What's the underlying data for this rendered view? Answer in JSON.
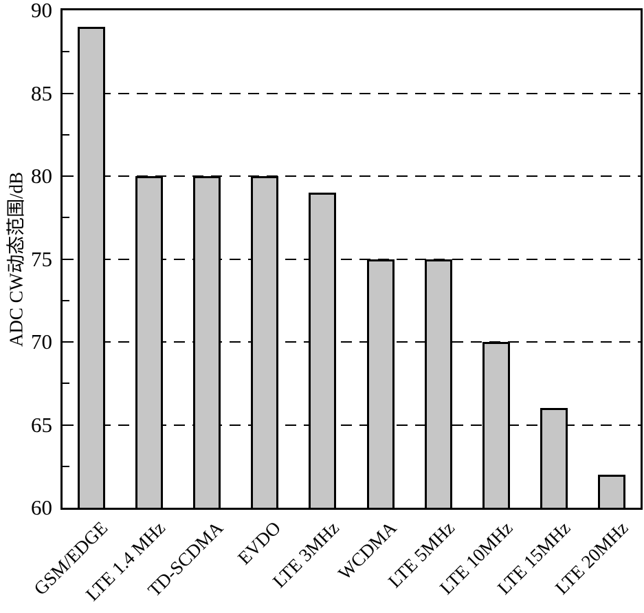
{
  "chart_data": {
    "type": "bar",
    "title": "",
    "categories": [
      "GSM/EDGE",
      "LTE 1.4 MHz",
      "TD-SCDMA",
      "EVDO",
      "LTE 3MHz",
      "WCDMA",
      "LTE 5MHz",
      "LTE 10MHz",
      "LTE 15MHz",
      "LTE 20MHz"
    ],
    "values": [
      89,
      80,
      80,
      80,
      79,
      75,
      75,
      70,
      66,
      62
    ],
    "xlabel": "",
    "ylabel": "ADC CW动态范围/dB",
    "ylim": [
      60,
      90
    ],
    "yticks": [
      60,
      65,
      70,
      75,
      80,
      85,
      90
    ],
    "minor_yticks": [
      62.5,
      67.5,
      72.5,
      77.5,
      82.5,
      87.5
    ],
    "gridlines": [
      65,
      70,
      75,
      80,
      85
    ],
    "grid_style": "dashed",
    "legend_position": "none",
    "x_label_rotation_deg": -45,
    "colors": {
      "bar_fill": "#c6c6c6",
      "bar_border": "#000000",
      "axis": "#000000",
      "background": "#ffffff"
    }
  }
}
